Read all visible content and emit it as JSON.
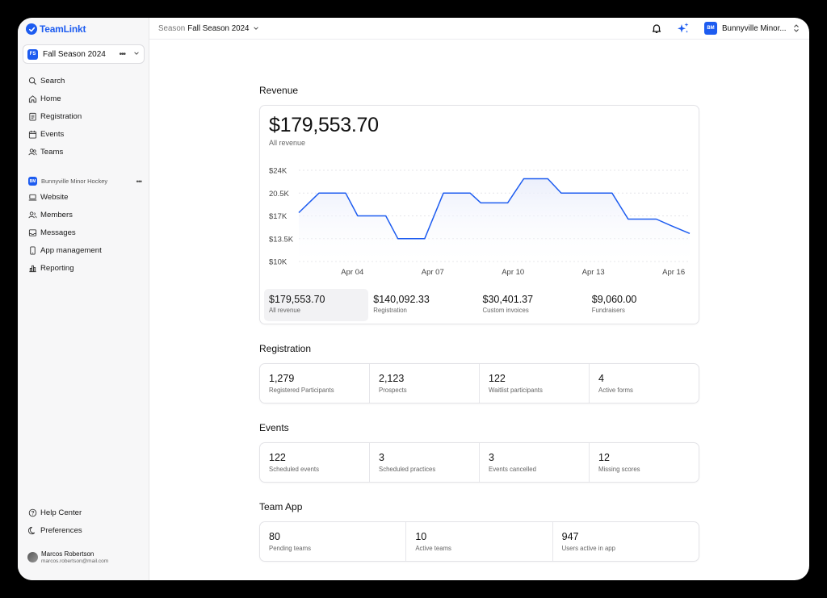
{
  "brand": {
    "name": "TeamLinkt",
    "color": "#1d5cf0"
  },
  "sidebar": {
    "season": {
      "initials": "FS",
      "name": "Fall Season 2024"
    },
    "nav_main": [
      {
        "label": "Search",
        "icon": "search-icon"
      },
      {
        "label": "Home",
        "icon": "home-icon"
      },
      {
        "label": "Registration",
        "icon": "clipboard-icon"
      },
      {
        "label": "Events",
        "icon": "calendar-icon"
      },
      {
        "label": "Teams",
        "icon": "team-icon"
      }
    ],
    "org": {
      "initials": "BM",
      "name": "Bunnyville Minor Hockey"
    },
    "nav_org": [
      {
        "label": "Website",
        "icon": "laptop-icon"
      },
      {
        "label": "Members",
        "icon": "members-icon"
      },
      {
        "label": "Messages",
        "icon": "inbox-icon"
      },
      {
        "label": "App management",
        "icon": "phone-icon"
      },
      {
        "label": "Reporting",
        "icon": "chart-icon"
      }
    ],
    "nav_bottom": [
      {
        "label": "Help Center",
        "icon": "help-icon"
      },
      {
        "label": "Preferences",
        "icon": "moon-icon"
      }
    ],
    "user": {
      "name": "Marcos Robertson",
      "email": "marcos.robertson@mail.com"
    }
  },
  "topbar": {
    "crumb_label": "Season",
    "crumb_value": "Fall Season 2024",
    "org_initials": "BM",
    "org_name": "Bunnyville Minor..."
  },
  "revenue": {
    "title": "Revenue",
    "total": "$179,553.70",
    "total_label": "All revenue",
    "stats": [
      {
        "value": "$179,553.70",
        "label": "All revenue"
      },
      {
        "value": "$140,092.33",
        "label": "Registration"
      },
      {
        "value": "$30,401.37",
        "label": "Custom invoices"
      },
      {
        "value": "$9,060.00",
        "label": "Fundraisers"
      }
    ]
  },
  "chart_data": {
    "type": "area",
    "x_ticks": [
      "Apr 04",
      "Apr 07",
      "Apr 10",
      "Apr 13",
      "Apr 16"
    ],
    "y_ticks": [
      "$24K",
      "20.5K",
      "$17K",
      "$13.5K",
      "$10K"
    ],
    "ylim": [
      10000,
      24000
    ],
    "grid": true,
    "line_color": "#1d5cf0",
    "series": [
      {
        "points": [
          [
            2.0,
            17500
          ],
          [
            2.75,
            20500
          ],
          [
            3.75,
            20500
          ],
          [
            4.2,
            17000
          ],
          [
            5.25,
            17000
          ],
          [
            5.7,
            13500
          ],
          [
            6.7,
            13500
          ],
          [
            7.4,
            20500
          ],
          [
            8.4,
            20500
          ],
          [
            8.8,
            19000
          ],
          [
            9.8,
            19000
          ],
          [
            10.4,
            22700
          ],
          [
            11.3,
            22700
          ],
          [
            11.8,
            20500
          ],
          [
            13.7,
            20500
          ],
          [
            14.3,
            16500
          ],
          [
            15.35,
            16500
          ],
          [
            15.9,
            15500
          ],
          [
            16.6,
            14300
          ]
        ]
      }
    ],
    "x_tick_values": [
      4,
      7,
      10,
      13,
      16
    ],
    "xlim": [
      2.0,
      16.6
    ]
  },
  "registration": {
    "title": "Registration",
    "stats": [
      {
        "value": "1,279",
        "label": "Registered Participants"
      },
      {
        "value": "2,123",
        "label": "Prospects"
      },
      {
        "value": "122",
        "label": "Waitlist participants"
      },
      {
        "value": "4",
        "label": "Active forms"
      }
    ]
  },
  "events": {
    "title": "Events",
    "stats": [
      {
        "value": "122",
        "label": "Scheduled events"
      },
      {
        "value": "3",
        "label": "Scheduled practices"
      },
      {
        "value": "3",
        "label": "Events cancelled"
      },
      {
        "value": "12",
        "label": "Missing scores"
      }
    ]
  },
  "team_app": {
    "title": "Team App",
    "stats": [
      {
        "value": "80",
        "label": "Pending teams"
      },
      {
        "value": "10",
        "label": "Active teams"
      },
      {
        "value": "947",
        "label": "Users active in app"
      }
    ]
  }
}
